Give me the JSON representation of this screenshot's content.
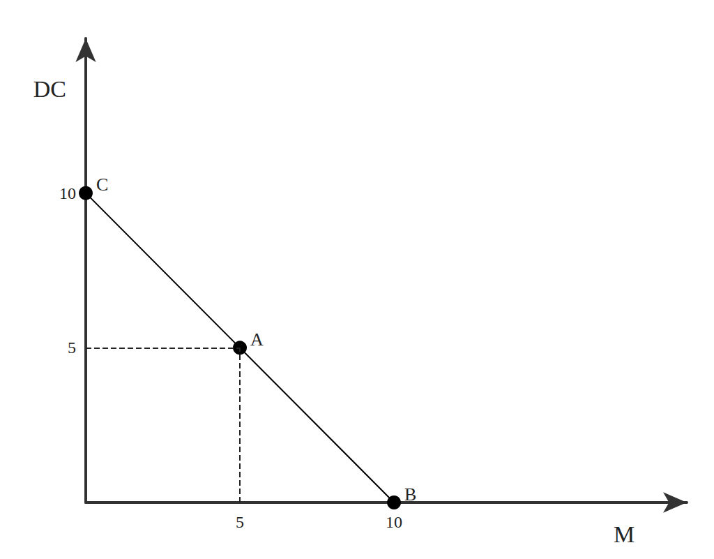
{
  "chart_data": {
    "type": "line",
    "x": [
      0,
      5,
      10
    ],
    "values": [
      10,
      5,
      0
    ],
    "point_labels": [
      "C",
      "A",
      "B"
    ],
    "x_label": "M",
    "y_label": "DC",
    "xlim": [
      0,
      19.5
    ],
    "ylim": [
      0,
      15
    ],
    "xticks": [
      5,
      10
    ],
    "yticks": [
      5,
      10
    ],
    "color": "#000000",
    "marker": "circle",
    "line_style": "solid",
    "grid": false
  }
}
